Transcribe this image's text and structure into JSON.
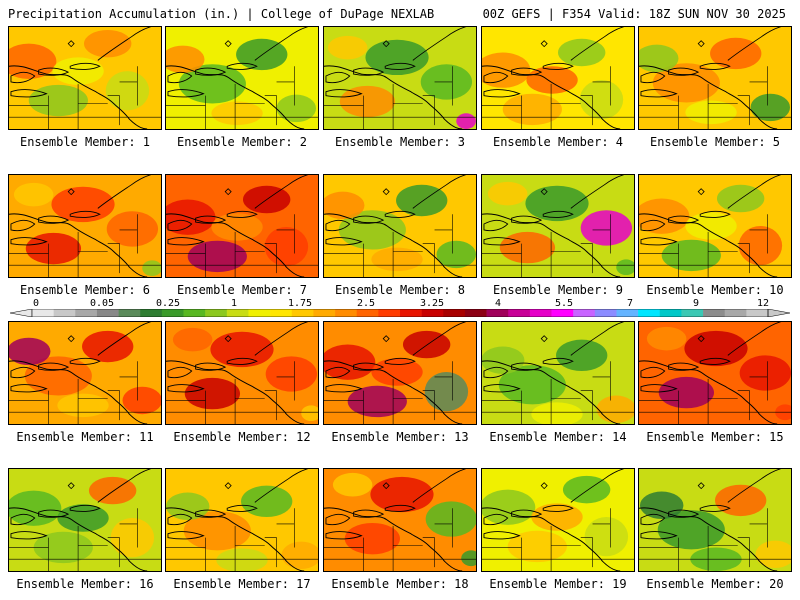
{
  "header": {
    "title_left": "Precipitation Accumulation (in.) | College of DuPage NEXLAB",
    "title_right": "00Z GEFS | F354 Valid: 18Z SUN NOV 30 2025"
  },
  "legend": {
    "tick_labels": [
      "0",
      "0.05",
      "0.25",
      "1",
      "1.75",
      "2.5",
      "3.25",
      "4",
      "5.5",
      "7",
      "9",
      "12"
    ],
    "colors": [
      "#e8e8e8",
      "#c8c8c8",
      "#a8a8a8",
      "#888888",
      "#5a8a5a",
      "#2e7d32",
      "#3a9a2a",
      "#58b822",
      "#8cc81e",
      "#c8dc14",
      "#f0f000",
      "#ffe600",
      "#ffc800",
      "#ffaa00",
      "#ff8c00",
      "#ff6400",
      "#ff3c00",
      "#e81400",
      "#c80000",
      "#a80000",
      "#8c0014",
      "#a0005a",
      "#c80096",
      "#e600c8",
      "#ff00ff",
      "#c864ff",
      "#8c8cff",
      "#64b4ff",
      "#00e6ff",
      "#00c8c8",
      "#3cc8b4",
      "#8c8c8c",
      "#a8a8a8",
      "#c8c8c8"
    ]
  },
  "members": [
    {
      "label": "Ensemble Member: 1",
      "base": "#ffc800",
      "blobs": [
        "#ff6400",
        "#ff8c00",
        "#8cc81e",
        "#c8dc14",
        "#f0f000"
      ]
    },
    {
      "label": "Ensemble Member: 2",
      "base": "#f0f000",
      "blobs": [
        "#58b822",
        "#3a9a2a",
        "#ff8c00",
        "#8cc81e",
        "#ffc800"
      ]
    },
    {
      "label": "Ensemble Member: 3",
      "base": "#c8dc14",
      "blobs": [
        "#3a9a2a",
        "#ff8c00",
        "#58b822",
        "#e600c8",
        "#ffc800"
      ]
    },
    {
      "label": "Ensemble Member: 4",
      "base": "#ffe600",
      "blobs": [
        "#ff8c00",
        "#8cc81e",
        "#ffaa00",
        "#c8dc14",
        "#ff6400"
      ]
    },
    {
      "label": "Ensemble Member: 5",
      "base": "#ffc800",
      "blobs": [
        "#ff8c00",
        "#ff6400",
        "#8cc81e",
        "#3a9a2a",
        "#f0f000"
      ]
    },
    {
      "label": "Ensemble Member: 6",
      "base": "#ffaa00",
      "blobs": [
        "#ff3c00",
        "#e81400",
        "#ff6400",
        "#8cc81e",
        "#ffc800"
      ]
    },
    {
      "label": "Ensemble Member: 7",
      "base": "#ff6400",
      "blobs": [
        "#e81400",
        "#c80000",
        "#a0005a",
        "#ff3c00",
        "#ff8c00"
      ]
    },
    {
      "label": "Ensemble Member: 8",
      "base": "#ffc800",
      "blobs": [
        "#8cc81e",
        "#3a9a2a",
        "#ff8c00",
        "#58b822",
        "#ffaa00"
      ]
    },
    {
      "label": "Ensemble Member: 9",
      "base": "#c8dc14",
      "blobs": [
        "#3a9a2a",
        "#ff6400",
        "#e600c8",
        "#58b822",
        "#ffc800"
      ]
    },
    {
      "label": "Ensemble Member: 10",
      "base": "#ffc800",
      "blobs": [
        "#ff8c00",
        "#8cc81e",
        "#58b822",
        "#ff6400",
        "#f0f000"
      ]
    },
    {
      "label": "Ensemble Member: 11",
      "base": "#ffaa00",
      "blobs": [
        "#ff6400",
        "#e81400",
        "#a0005a",
        "#ff3c00",
        "#ffc800"
      ]
    },
    {
      "label": "Ensemble Member: 12",
      "base": "#ff8c00",
      "blobs": [
        "#e81400",
        "#c80000",
        "#ff3c00",
        "#ffc800",
        "#ff6400"
      ]
    },
    {
      "label": "Ensemble Member: 13",
      "base": "#ff8c00",
      "blobs": [
        "#e81400",
        "#c80000",
        "#a0005a",
        "#5a8a5a",
        "#ff3c00"
      ]
    },
    {
      "label": "Ensemble Member: 14",
      "base": "#c8dc14",
      "blobs": [
        "#58b822",
        "#3a9a2a",
        "#8cc81e",
        "#ffaa00",
        "#f0f000"
      ]
    },
    {
      "label": "Ensemble Member: 15",
      "base": "#ff6400",
      "blobs": [
        "#c80000",
        "#a0005a",
        "#e81400",
        "#ff3c00",
        "#ff8c00"
      ]
    },
    {
      "label": "Ensemble Member: 16",
      "base": "#c8dc14",
      "blobs": [
        "#58b822",
        "#ff6400",
        "#8cc81e",
        "#ffc800",
        "#3a9a2a"
      ]
    },
    {
      "label": "Ensemble Member: 17",
      "base": "#ffc800",
      "blobs": [
        "#ff8c00",
        "#58b822",
        "#8cc81e",
        "#ffaa00",
        "#c8dc14"
      ]
    },
    {
      "label": "Ensemble Member: 18",
      "base": "#ff8c00",
      "blobs": [
        "#e81400",
        "#ff3c00",
        "#58b822",
        "#3a9a2a",
        "#ffc800"
      ]
    },
    {
      "label": "Ensemble Member: 19",
      "base": "#f0f000",
      "blobs": [
        "#8cc81e",
        "#58b822",
        "#ffc800",
        "#c8dc14",
        "#ffaa00"
      ]
    },
    {
      "label": "Ensemble Member: 20",
      "base": "#c8dc14",
      "blobs": [
        "#3a9a2a",
        "#ff6400",
        "#2e7d32",
        "#ffc800",
        "#58b822"
      ]
    }
  ]
}
